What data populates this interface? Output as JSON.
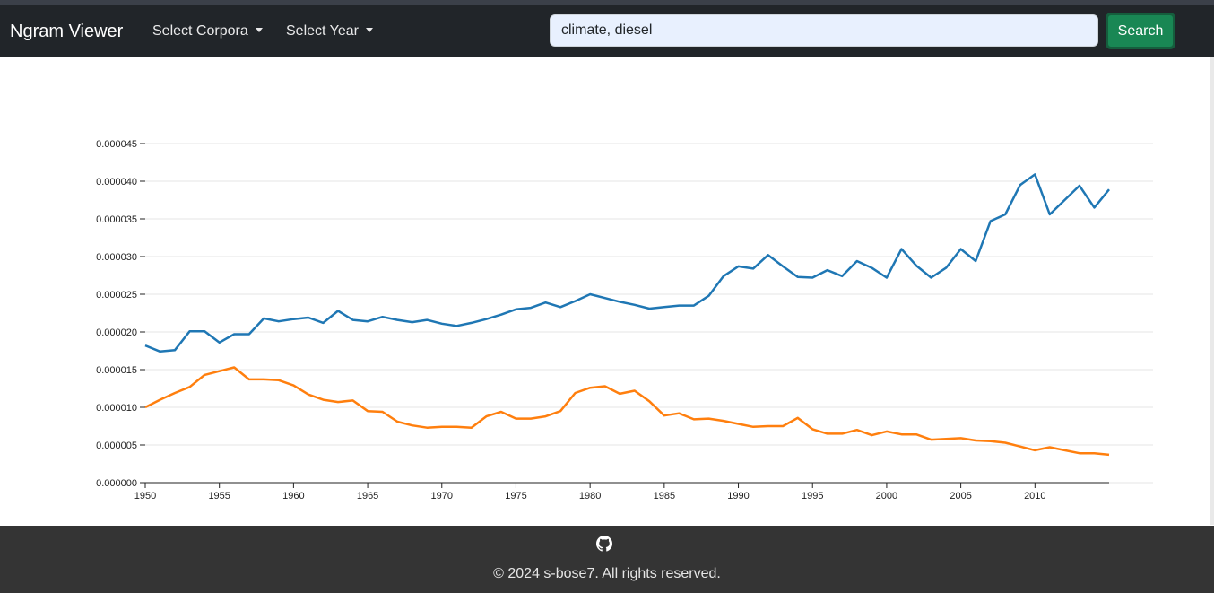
{
  "navbar": {
    "brand": "Ngram Viewer",
    "corpora_label": "Select Corpora",
    "year_label": "Select Year",
    "search_value": "climate, diesel",
    "search_button": "Search"
  },
  "footer": {
    "icon": "github-icon",
    "copyright": "© 2024 s-bose7. All rights reserved."
  },
  "colors": {
    "navbar_bg": "#212529",
    "search_button_bg": "#198754",
    "series_climate": "#1f77b4",
    "series_diesel": "#ff7f0e",
    "footer_bg": "#343434"
  },
  "chart_data": {
    "type": "line",
    "title": "",
    "xlabel": "",
    "ylabel": "",
    "xlim": [
      1950,
      2015
    ],
    "ylim": [
      0,
      4.5e-05
    ],
    "x_ticks": [
      "1950",
      "1955",
      "1960",
      "1965",
      "1970",
      "1975",
      "1980",
      "1985",
      "1990",
      "1995",
      "2000",
      "2005",
      "2010"
    ],
    "y_ticks": [
      "0.000000",
      "0.000005",
      "0.000010",
      "0.000015",
      "0.000020",
      "0.000025",
      "0.000030",
      "0.000035",
      "0.000040",
      "0.000045"
    ],
    "grid": "horizontal",
    "x": [
      1950,
      1951,
      1952,
      1953,
      1954,
      1955,
      1956,
      1957,
      1958,
      1959,
      1960,
      1961,
      1962,
      1963,
      1964,
      1965,
      1966,
      1967,
      1968,
      1969,
      1970,
      1971,
      1972,
      1973,
      1974,
      1975,
      1976,
      1977,
      1978,
      1979,
      1980,
      1981,
      1982,
      1983,
      1984,
      1985,
      1986,
      1987,
      1988,
      1989,
      1990,
      1991,
      1992,
      1993,
      1994,
      1995,
      1996,
      1997,
      1998,
      1999,
      2000,
      2001,
      2002,
      2003,
      2004,
      2005,
      2006,
      2007,
      2008,
      2009,
      2010,
      2011,
      2012,
      2013,
      2014,
      2015
    ],
    "series": [
      {
        "name": "climate",
        "values": [
          1.82e-05,
          1.74e-05,
          1.76e-05,
          2.01e-05,
          2.01e-05,
          1.86e-05,
          1.97e-05,
          1.97e-05,
          2.18e-05,
          2.14e-05,
          2.17e-05,
          2.19e-05,
          2.12e-05,
          2.28e-05,
          2.16e-05,
          2.14e-05,
          2.2e-05,
          2.16e-05,
          2.13e-05,
          2.16e-05,
          2.11e-05,
          2.08e-05,
          2.12e-05,
          2.17e-05,
          2.23e-05,
          2.3e-05,
          2.32e-05,
          2.39e-05,
          2.33e-05,
          2.41e-05,
          2.5e-05,
          2.45e-05,
          2.4e-05,
          2.36e-05,
          2.31e-05,
          2.33e-05,
          2.35e-05,
          2.35e-05,
          2.48e-05,
          2.74e-05,
          2.87e-05,
          2.84e-05,
          3.02e-05,
          2.87e-05,
          2.73e-05,
          2.72e-05,
          2.82e-05,
          2.74e-05,
          2.94e-05,
          2.85e-05,
          2.72e-05,
          3.1e-05,
          2.88e-05,
          2.72e-05,
          2.85e-05,
          3.1e-05,
          2.94e-05,
          3.47e-05,
          3.56e-05,
          3.95e-05,
          4.09e-05,
          3.56e-05,
          3.75e-05,
          3.94e-05,
          3.65e-05,
          3.89e-05
        ]
      },
      {
        "name": "diesel",
        "values": [
          1e-05,
          1.1e-05,
          1.19e-05,
          1.27e-05,
          1.43e-05,
          1.48e-05,
          1.53e-05,
          1.37e-05,
          1.37e-05,
          1.36e-05,
          1.29e-05,
          1.17e-05,
          1.1e-05,
          1.07e-05,
          1.09e-05,
          9.5e-06,
          9.4e-06,
          8.1e-06,
          7.6e-06,
          7.3e-06,
          7.4e-06,
          7.4e-06,
          7.3e-06,
          8.8e-06,
          9.4e-06,
          8.5e-06,
          8.5e-06,
          8.8e-06,
          9.5e-06,
          1.19e-05,
          1.26e-05,
          1.28e-05,
          1.18e-05,
          1.22e-05,
          1.08e-05,
          8.9e-06,
          9.2e-06,
          8.4e-06,
          8.5e-06,
          8.2e-06,
          7.8e-06,
          7.4e-06,
          7.5e-06,
          7.5e-06,
          8.6e-06,
          7.1e-06,
          6.5e-06,
          6.5e-06,
          7e-06,
          6.3e-06,
          6.8e-06,
          6.4e-06,
          6.4e-06,
          5.7e-06,
          5.8e-06,
          5.9e-06,
          5.6e-06,
          5.5e-06,
          5.3e-06,
          4.8e-06,
          4.3e-06,
          4.7e-06,
          4.3e-06,
          3.9e-06,
          3.9e-06,
          3.7e-06
        ]
      }
    ]
  }
}
